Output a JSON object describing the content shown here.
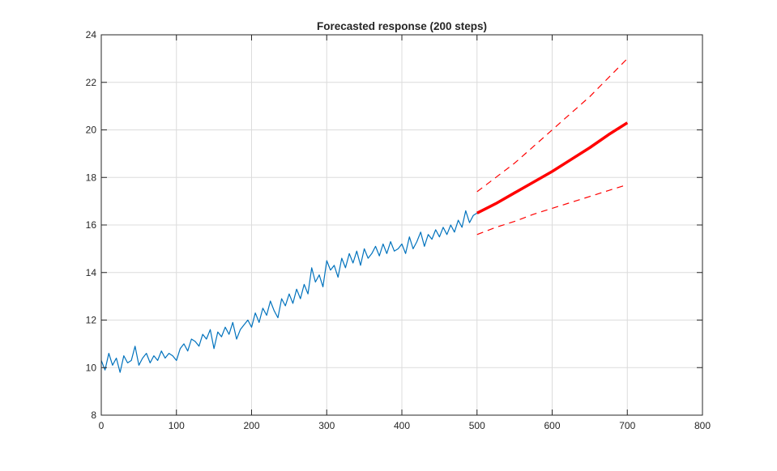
{
  "chart_data": {
    "type": "line",
    "title": "Forecasted response (200 steps)",
    "xlabel": "",
    "ylabel": "",
    "xlim": [
      0,
      800
    ],
    "ylim": [
      8,
      24
    ],
    "xticks": [
      "0",
      "100",
      "200",
      "300",
      "400",
      "500",
      "600",
      "700",
      "800"
    ],
    "yticks": [
      "8",
      "10",
      "12",
      "14",
      "16",
      "18",
      "20",
      "22",
      "24"
    ],
    "grid": true,
    "series": [
      {
        "name": "observed",
        "color": "#0072BD",
        "x_start": 0,
        "x_step": 5,
        "values": [
          10.3,
          9.9,
          10.6,
          10.1,
          10.4,
          9.8,
          10.5,
          10.2,
          10.3,
          10.9,
          10.1,
          10.4,
          10.6,
          10.2,
          10.5,
          10.3,
          10.7,
          10.4,
          10.6,
          10.5,
          10.3,
          10.8,
          11.0,
          10.7,
          11.2,
          11.1,
          10.9,
          11.4,
          11.2,
          11.6,
          10.8,
          11.5,
          11.3,
          11.7,
          11.4,
          11.9,
          11.2,
          11.6,
          11.8,
          12.0,
          11.7,
          12.3,
          11.9,
          12.5,
          12.2,
          12.8,
          12.4,
          12.1,
          12.9,
          12.6,
          13.1,
          12.7,
          13.3,
          12.9,
          13.5,
          13.1,
          14.2,
          13.6,
          13.9,
          13.4,
          14.5,
          14.1,
          14.3,
          13.8,
          14.6,
          14.2,
          14.8,
          14.4,
          14.9,
          14.3,
          15.0,
          14.6,
          14.8,
          15.1,
          14.7,
          15.2,
          14.8,
          15.3,
          14.9,
          15.0,
          15.2,
          14.8,
          15.5,
          15.0,
          15.3,
          15.7,
          15.1,
          15.6,
          15.4,
          15.8,
          15.5,
          15.9,
          15.6,
          16.0,
          15.7,
          16.2,
          15.9,
          16.6,
          16.1,
          16.4,
          16.5
        ]
      },
      {
        "name": "forecast",
        "color": "#FF0000",
        "style": "solid-thick",
        "x_start": 500,
        "x_step": 25,
        "values": [
          16.5,
          16.9,
          17.35,
          17.8,
          18.25,
          18.75,
          19.25,
          19.8,
          20.3
        ]
      },
      {
        "name": "upper bound",
        "color": "#FF0000",
        "style": "dashed",
        "x_start": 500,
        "x_step": 25,
        "values": [
          17.4,
          18.0,
          18.6,
          19.3,
          20.0,
          20.7,
          21.4,
          22.2,
          23.0
        ]
      },
      {
        "name": "lower bound",
        "color": "#FF0000",
        "style": "dashed",
        "x_start": 500,
        "x_step": 25,
        "values": [
          15.6,
          15.9,
          16.15,
          16.45,
          16.7,
          16.95,
          17.2,
          17.45,
          17.7
        ]
      }
    ]
  }
}
